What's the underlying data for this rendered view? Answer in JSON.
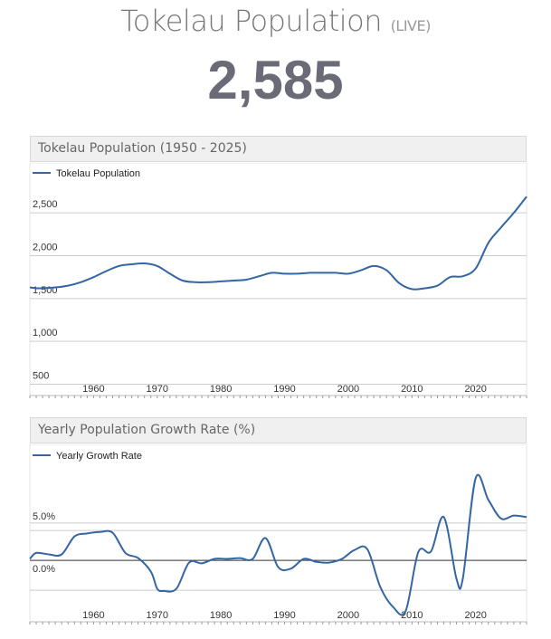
{
  "header": {
    "title": "Tokelau Population",
    "live_label": "(LIVE)",
    "counter": "2,585"
  },
  "colors": {
    "line": "#3465a4",
    "grid": "#cccccc",
    "zero_line": "#333333"
  },
  "chart_data": [
    {
      "type": "line",
      "title": "Tokelau Population (1950 - 2025)",
      "xlim": [
        1950,
        2028
      ],
      "ylim": [
        400,
        2850
      ],
      "y_ticks": [
        {
          "value": 500,
          "label": "500"
        },
        {
          "value": 1000,
          "label": "1,000"
        },
        {
          "value": 1500,
          "label": "1,500"
        },
        {
          "value": 2000,
          "label": "2,000"
        },
        {
          "value": 2500,
          "label": "2,500"
        }
      ],
      "x_ticks": [
        {
          "value": 1960,
          "label": "1960"
        },
        {
          "value": 1970,
          "label": "1970"
        },
        {
          "value": 1980,
          "label": "1980"
        },
        {
          "value": 1990,
          "label": "1990"
        },
        {
          "value": 2000,
          "label": "2000"
        },
        {
          "value": 2010,
          "label": "2010"
        },
        {
          "value": 2020,
          "label": "2020"
        }
      ],
      "legend": "top-left",
      "series": [
        {
          "name": "Tokelau Population",
          "x": [
            1950,
            1951,
            1952,
            1954,
            1956,
            1958,
            1960,
            1962,
            1964,
            1966,
            1968,
            1970,
            1972,
            1974,
            1976,
            1978,
            1980,
            1982,
            1984,
            1986,
            1988,
            1990,
            1992,
            1994,
            1996,
            1998,
            2000,
            2002,
            2004,
            2006,
            2008,
            2010,
            2012,
            2014,
            2016,
            2018,
            2020,
            2022,
            2024,
            2026,
            2028
          ],
          "y": [
            1630,
            1620,
            1620,
            1630,
            1650,
            1690,
            1750,
            1820,
            1880,
            1900,
            1910,
            1880,
            1790,
            1710,
            1690,
            1690,
            1700,
            1710,
            1720,
            1760,
            1800,
            1790,
            1790,
            1800,
            1800,
            1800,
            1790,
            1830,
            1880,
            1830,
            1680,
            1610,
            1620,
            1650,
            1750,
            1760,
            1850,
            2150,
            2330,
            2500,
            2690
          ]
        }
      ]
    },
    {
      "type": "line",
      "title": "Yearly Population Growth Rate (%)",
      "xlim": [
        1950,
        2028
      ],
      "ylim": [
        -7.5,
        12.5
      ],
      "y_ticks": [
        {
          "value": 0,
          "label": "0.0%"
        },
        {
          "value": 5,
          "label": "5.0%"
        }
      ],
      "x_ticks": [
        {
          "value": 1960,
          "label": "1960"
        },
        {
          "value": 1970,
          "label": "1970"
        },
        {
          "value": 1980,
          "label": "1980"
        },
        {
          "value": 1990,
          "label": "1990"
        },
        {
          "value": 2000,
          "label": "2000"
        },
        {
          "value": 2010,
          "label": "2010"
        },
        {
          "value": 2020,
          "label": "2020"
        }
      ],
      "grid_values": [
        -4,
        4
      ],
      "legend": "top-left",
      "series": [
        {
          "name": "Yearly Growth Rate",
          "x": [
            1950,
            1951,
            1953,
            1955,
            1957,
            1959,
            1961,
            1963,
            1965,
            1967,
            1969,
            1970,
            1971,
            1973,
            1975,
            1977,
            1979,
            1981,
            1983,
            1985,
            1987,
            1989,
            1991,
            1993,
            1995,
            1997,
            1999,
            2001,
            2003,
            2005,
            2007,
            2009,
            2011,
            2013,
            2015,
            2017,
            2018,
            2020,
            2022,
            2024,
            2026,
            2028
          ],
          "y": [
            0.2,
            1.0,
            0.8,
            0.8,
            3.2,
            3.6,
            3.8,
            3.7,
            1.0,
            0.3,
            -1.5,
            -3.8,
            -4.1,
            -3.8,
            -0.3,
            -0.4,
            0.2,
            0.2,
            0.3,
            0.2,
            3.0,
            -0.9,
            -1.1,
            0.2,
            -0.2,
            -0.3,
            0.2,
            1.4,
            1.5,
            -3.5,
            -6.2,
            -6.8,
            1.1,
            1.2,
            5.8,
            -2.5,
            -2.4,
            11.0,
            8.1,
            5.6,
            6.0,
            5.8
          ]
        }
      ]
    }
  ]
}
